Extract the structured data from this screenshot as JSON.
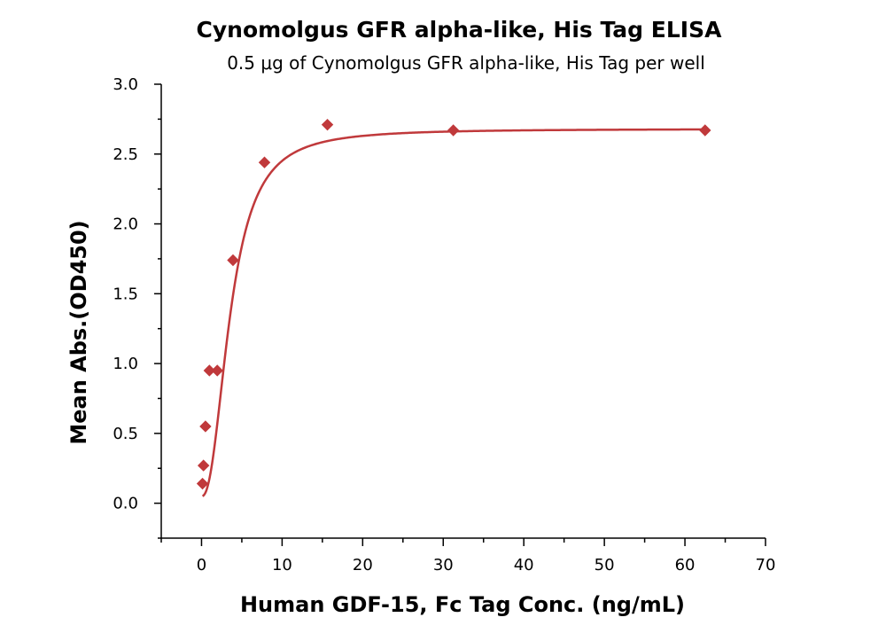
{
  "chart_data": {
    "type": "scatter",
    "title": "Cynomolgus GFR alpha-like, His Tag ELISA",
    "subtitle": "0.5 μg of Cynomolgus GFR alpha-like, His Tag per well",
    "xlabel": "Human GDF-15, Fc Tag Conc. (ng/mL)",
    "ylabel": "Mean Abs.(OD450)",
    "xlim": [
      -5,
      70
    ],
    "ylim": [
      -0.25,
      3.0
    ],
    "x_ticks": [
      0,
      10,
      20,
      30,
      40,
      50,
      60,
      70
    ],
    "y_ticks": [
      0.0,
      0.5,
      1.0,
      1.5,
      2.0,
      2.5,
      3.0
    ],
    "x_tick_labels": [
      "0",
      "10",
      "20",
      "30",
      "40",
      "50",
      "60",
      "70"
    ],
    "y_tick_labels": [
      "0.0",
      "0.5",
      "1.0",
      "1.5",
      "2.0",
      "2.5",
      "3.0"
    ],
    "grid": false,
    "series": [
      {
        "marker": "diamond",
        "color": "#c0393b",
        "x": [
          0.122,
          0.244,
          0.488,
          0.977,
          1.953,
          3.906,
          7.813,
          15.625,
          31.25,
          62.5
        ],
        "y": [
          0.14,
          0.27,
          0.55,
          0.95,
          0.95,
          1.74,
          2.44,
          2.71,
          2.67,
          2.67
        ]
      }
    ],
    "fit": {
      "type": "4PL",
      "color": "#c0393b",
      "bottom": 0.05,
      "top": 2.68,
      "ec50": 3.6,
      "hill": 2.3
    }
  }
}
